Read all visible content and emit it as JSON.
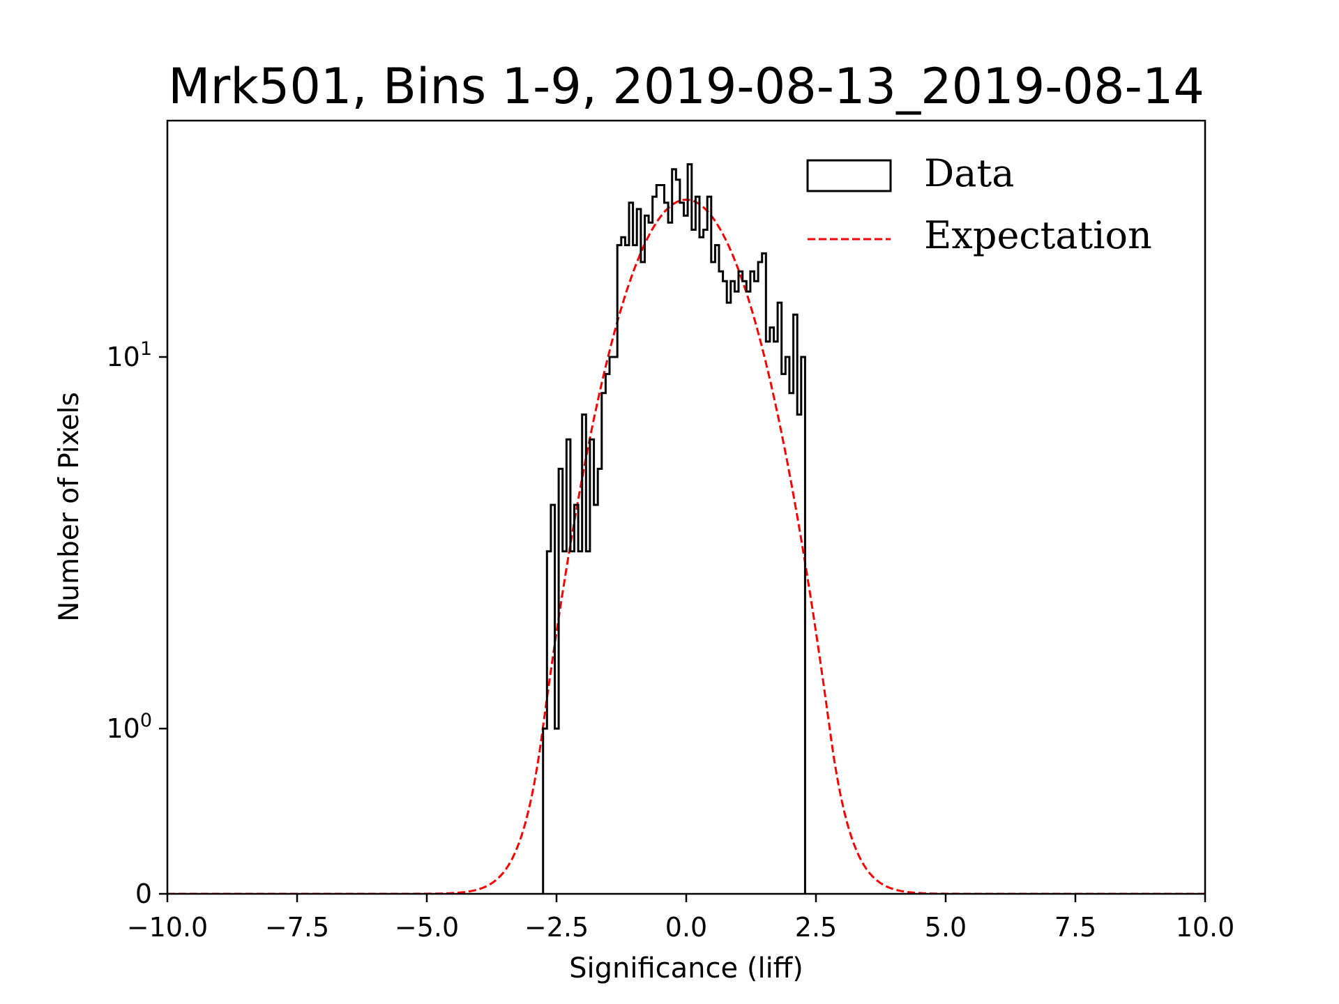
{
  "chart_data": {
    "type": "bar",
    "subtype": "step-histogram",
    "title": "Mrk501, Bins 1-9, 2019-08-13_2019-08-14",
    "xlabel": "Significance (liff)",
    "ylabel": "Number of Pixels",
    "xlim": [
      -10.0,
      10.0
    ],
    "ylim": [
      0,
      43
    ],
    "yscale": "symlog",
    "ylinthresh": 1,
    "xticks": [
      -10.0,
      -7.5,
      -5.0,
      -2.5,
      0.0,
      2.5,
      5.0,
      7.5,
      10.0
    ],
    "xtick_labels": [
      "−10.0",
      "−7.5",
      "−5.0",
      "−2.5",
      "0.0",
      "2.5",
      "5.0",
      "7.5",
      "10.0"
    ],
    "yticks": [
      0,
      1,
      10
    ],
    "ytick_labels": [
      {
        "base": "0",
        "exp": ""
      },
      {
        "base": "10",
        "exp": "0"
      },
      {
        "base": "10",
        "exp": "1"
      }
    ],
    "grid": false,
    "legend_position": "top-right",
    "series": [
      {
        "name": "Data",
        "kind": "histogram",
        "color": "#000000",
        "bin_start": -2.76,
        "bin_end": 2.29,
        "counts": [
          1,
          3,
          4,
          1,
          5,
          3,
          6,
          3,
          4,
          3,
          7,
          3,
          6,
          4,
          5,
          8,
          9,
          10,
          10,
          20,
          21,
          20,
          26,
          20,
          25,
          18,
          24,
          23,
          27,
          29,
          29,
          26,
          23,
          32,
          30,
          26,
          24,
          33,
          22,
          27,
          21,
          22,
          27,
          18,
          20,
          17,
          16,
          14,
          16,
          15,
          17,
          16,
          15,
          17,
          16,
          18,
          19,
          11,
          12,
          11,
          14,
          9,
          10,
          8,
          13,
          7,
          10
        ]
      },
      {
        "name": "Expectation",
        "kind": "gaussian",
        "color": "#ff0000",
        "linestyle": "dashed",
        "amplitude": 26.5,
        "mean": 0.0,
        "sigma": 1.08
      }
    ],
    "legend": [
      {
        "label": "Data",
        "symbol": "open-box"
      },
      {
        "label": "Expectation",
        "symbol": "red-dashed-line"
      }
    ]
  }
}
